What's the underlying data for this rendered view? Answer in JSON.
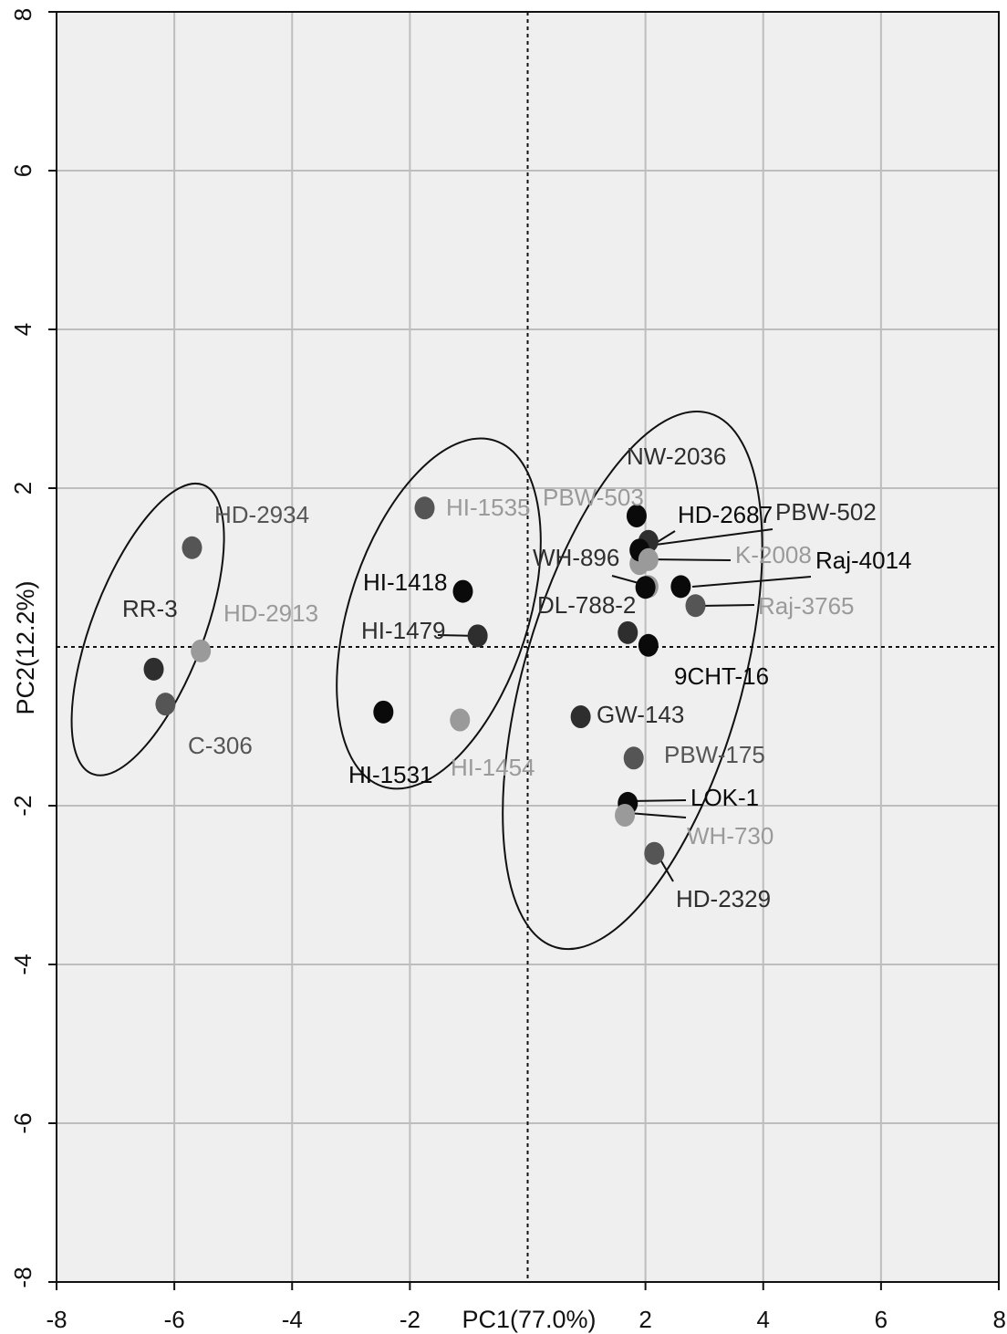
{
  "chart_data": {
    "type": "scatter",
    "xlabel": "PC1(77.0%)",
    "ylabel": "PC2(12.2%)",
    "xlim": [
      -8,
      8
    ],
    "ylim": [
      -8,
      8
    ],
    "x_ticks": [
      -8,
      -6,
      -4,
      -2,
      2,
      4,
      6,
      8
    ],
    "y_ticks": [
      -8,
      -6,
      -4,
      -2,
      2,
      4,
      6,
      8
    ],
    "grid": true,
    "reference_lines": {
      "x": 0,
      "y": 0,
      "style": "dotted"
    },
    "colors": {
      "background": "#efefef",
      "grid": "#bdbdbd",
      "black": "#0a0a0a",
      "dark": "#2e2e2e",
      "mid": "#555555",
      "light": "#9a9a9a"
    },
    "points": [
      {
        "label": "HD-2934",
        "x": -5.7,
        "y": 1.25,
        "color": "mid",
        "label_color": "mid"
      },
      {
        "label": "HD-2913",
        "x": -5.55,
        "y": -0.05,
        "color": "light",
        "label_color": "light"
      },
      {
        "label": "RR-3",
        "x": -6.35,
        "y": -0.28,
        "color": "dark",
        "label_color": "dark"
      },
      {
        "label": "C-306",
        "x": -6.15,
        "y": -0.72,
        "color": "mid",
        "label_color": "mid"
      },
      {
        "label": "HI-1535",
        "x": -1.75,
        "y": 1.75,
        "color": "mid",
        "label_color": "light"
      },
      {
        "label": "HI-1418",
        "x": -1.1,
        "y": 0.7,
        "color": "black",
        "label_color": "black"
      },
      {
        "label": "HI-1479",
        "x": -0.85,
        "y": 0.14,
        "color": "dark",
        "label_color": "dark"
      },
      {
        "label": "HI-1531",
        "x": -2.45,
        "y": -0.82,
        "color": "black",
        "label_color": "black"
      },
      {
        "label": "HI-1454",
        "x": -1.15,
        "y": -0.92,
        "color": "light",
        "label_color": "light"
      },
      {
        "label": "PBW-503",
        "x": 1.9,
        "y": 1.05,
        "color": "light",
        "label_color": "light"
      },
      {
        "label": "NW-2036",
        "x": 1.85,
        "y": 1.65,
        "color": "black",
        "label_color": "dark"
      },
      {
        "label": "HD-2687",
        "x": 2.05,
        "y": 1.33,
        "color": "dark",
        "label_color": "black"
      },
      {
        "label": "PBW-502",
        "x": 1.9,
        "y": 1.22,
        "color": "black",
        "label_color": "dark"
      },
      {
        "label": "K-2008",
        "x": 2.05,
        "y": 1.1,
        "color": "light",
        "label_color": "light"
      },
      {
        "label": "WH-896",
        "x": 2.05,
        "y": 0.76,
        "color": "light",
        "label_color": "dark"
      },
      {
        "label": "DL-788-2",
        "x": 2.0,
        "y": 0.75,
        "color": "black",
        "label_color": "dark"
      },
      {
        "label": "Raj-4014",
        "x": 2.6,
        "y": 0.76,
        "color": "black",
        "label_color": "black"
      },
      {
        "label": "Raj-3765",
        "x": 2.85,
        "y": 0.52,
        "color": "mid",
        "label_color": "light"
      },
      {
        "label": "",
        "x": 1.7,
        "y": 0.18,
        "color": "dark",
        "label_color": "dark"
      },
      {
        "label": "9CHT-16",
        "x": 2.05,
        "y": 0.02,
        "color": "black",
        "label_color": "black"
      },
      {
        "label": "GW-143",
        "x": 0.9,
        "y": -0.88,
        "color": "dark",
        "label_color": "dark"
      },
      {
        "label": "PBW-175",
        "x": 1.8,
        "y": -1.4,
        "color": "mid",
        "label_color": "mid"
      },
      {
        "label": "LOK-1",
        "x": 1.7,
        "y": -1.97,
        "color": "black",
        "label_color": "black"
      },
      {
        "label": "WH-730",
        "x": 1.65,
        "y": -2.12,
        "color": "light",
        "label_color": "light"
      },
      {
        "label": "HD-2329",
        "x": 2.15,
        "y": -2.6,
        "color": "mid",
        "label_color": "dark"
      }
    ],
    "ellipses": [
      {
        "cx": -6.45,
        "cy": 0.22,
        "rx": 0.95,
        "ry": 1.95,
        "rotate": 21
      },
      {
        "cx": -1.51,
        "cy": 0.42,
        "rx": 1.52,
        "ry": 2.29,
        "rotate": 18
      },
      {
        "cx": 1.78,
        "cy": -0.42,
        "rx": 1.85,
        "ry": 3.5,
        "rotate": 16
      }
    ]
  }
}
